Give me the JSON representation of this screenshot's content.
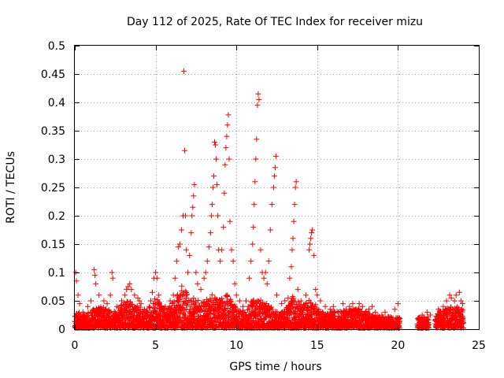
{
  "chart_data": {
    "type": "scatter",
    "title": "Day 112 of 2025, Rate Of TEC Index for receiver mizu",
    "xlabel": "GPS time / hours",
    "ylabel": "ROTI / TECUs",
    "xlim": [
      0,
      25
    ],
    "ylim": [
      0,
      0.5
    ],
    "xticks": [
      0,
      5,
      10,
      15,
      20,
      25
    ],
    "yticks": [
      0,
      0.05,
      0.1,
      0.15,
      0.2,
      0.25,
      0.3,
      0.35,
      0.4,
      0.45,
      0.5
    ],
    "xtick_labels": [
      "0",
      "5",
      "10",
      "15",
      "20",
      "25"
    ],
    "ytick_labels": [
      "0",
      "0.05",
      "0.1",
      "0.15",
      "0.2",
      "0.25",
      "0.3",
      "0.35",
      "0.4",
      "0.45",
      "0.5"
    ],
    "grid": true,
    "marker": "plus",
    "series_color": "#ff0000",
    "series": [
      {
        "name": "ROTI",
        "points": [
          [
            0.05,
            0.1
          ],
          [
            0.1,
            0.085
          ],
          [
            0.2,
            0.06
          ],
          [
            0.3,
            0.045
          ],
          [
            0.5,
            0.03
          ],
          [
            0.8,
            0.04
          ],
          [
            1.0,
            0.05
          ],
          [
            1.2,
            0.105
          ],
          [
            1.25,
            0.095
          ],
          [
            1.3,
            0.08
          ],
          [
            1.5,
            0.06
          ],
          [
            1.8,
            0.05
          ],
          [
            2.0,
            0.045
          ],
          [
            2.2,
            0.06
          ],
          [
            2.3,
            0.1
          ],
          [
            2.35,
            0.09
          ],
          [
            2.6,
            0.04
          ],
          [
            2.9,
            0.05
          ],
          [
            3.1,
            0.06
          ],
          [
            3.2,
            0.07
          ],
          [
            3.3,
            0.075
          ],
          [
            3.4,
            0.08
          ],
          [
            3.5,
            0.07
          ],
          [
            3.7,
            0.06
          ],
          [
            3.9,
            0.055
          ],
          [
            4.0,
            0.05
          ],
          [
            4.1,
            0.045
          ],
          [
            4.3,
            0.035
          ],
          [
            4.4,
            0.03
          ],
          [
            4.6,
            0.04
          ],
          [
            4.7,
            0.05
          ],
          [
            4.8,
            0.065
          ],
          [
            4.9,
            0.09
          ],
          [
            5.0,
            0.1
          ],
          [
            5.1,
            0.09
          ],
          [
            5.2,
            0.06
          ],
          [
            5.4,
            0.035
          ],
          [
            5.6,
            0.04
          ],
          [
            5.9,
            0.05
          ],
          [
            6.1,
            0.06
          ],
          [
            6.2,
            0.09
          ],
          [
            6.3,
            0.12
          ],
          [
            6.4,
            0.145
          ],
          [
            6.5,
            0.15
          ],
          [
            6.6,
            0.175
          ],
          [
            6.7,
            0.2
          ],
          [
            6.75,
            0.455
          ],
          [
            6.8,
            0.315
          ],
          [
            6.85,
            0.2
          ],
          [
            6.9,
            0.14
          ],
          [
            7.0,
            0.1
          ],
          [
            7.1,
            0.13
          ],
          [
            7.2,
            0.17
          ],
          [
            7.25,
            0.2
          ],
          [
            7.3,
            0.215
          ],
          [
            7.35,
            0.235
          ],
          [
            7.4,
            0.255
          ],
          [
            7.5,
            0.1
          ],
          [
            7.6,
            0.08
          ],
          [
            7.8,
            0.07
          ],
          [
            8.0,
            0.09
          ],
          [
            8.1,
            0.1
          ],
          [
            8.2,
            0.12
          ],
          [
            8.3,
            0.145
          ],
          [
            8.4,
            0.17
          ],
          [
            8.45,
            0.2
          ],
          [
            8.5,
            0.22
          ],
          [
            8.55,
            0.25
          ],
          [
            8.6,
            0.27
          ],
          [
            8.65,
            0.33
          ],
          [
            8.7,
            0.325
          ],
          [
            8.75,
            0.3
          ],
          [
            8.8,
            0.255
          ],
          [
            8.85,
            0.2
          ],
          [
            8.9,
            0.14
          ],
          [
            9.0,
            0.12
          ],
          [
            9.1,
            0.14
          ],
          [
            9.2,
            0.18
          ],
          [
            9.25,
            0.24
          ],
          [
            9.3,
            0.29
          ],
          [
            9.35,
            0.32
          ],
          [
            9.4,
            0.34
          ],
          [
            9.45,
            0.36
          ],
          [
            9.5,
            0.378
          ],
          [
            9.55,
            0.3
          ],
          [
            9.6,
            0.19
          ],
          [
            9.7,
            0.14
          ],
          [
            9.8,
            0.12
          ],
          [
            9.9,
            0.08
          ],
          [
            10.0,
            0.06
          ],
          [
            10.2,
            0.05
          ],
          [
            10.4,
            0.04
          ],
          [
            10.6,
            0.05
          ],
          [
            10.8,
            0.09
          ],
          [
            10.9,
            0.12
          ],
          [
            11.0,
            0.15
          ],
          [
            11.05,
            0.18
          ],
          [
            11.1,
            0.22
          ],
          [
            11.15,
            0.26
          ],
          [
            11.2,
            0.3
          ],
          [
            11.25,
            0.335
          ],
          [
            11.3,
            0.395
          ],
          [
            11.35,
            0.415
          ],
          [
            11.4,
            0.405
          ],
          [
            11.5,
            0.14
          ],
          [
            11.6,
            0.1
          ],
          [
            11.7,
            0.09
          ],
          [
            11.8,
            0.1
          ],
          [
            11.9,
            0.08
          ],
          [
            12.0,
            0.12
          ],
          [
            12.1,
            0.175
          ],
          [
            12.2,
            0.22
          ],
          [
            12.3,
            0.25
          ],
          [
            12.35,
            0.27
          ],
          [
            12.4,
            0.285
          ],
          [
            12.45,
            0.305
          ],
          [
            12.5,
            0.06
          ],
          [
            12.8,
            0.045
          ],
          [
            13.0,
            0.05
          ],
          [
            13.2,
            0.055
          ],
          [
            13.3,
            0.09
          ],
          [
            13.4,
            0.11
          ],
          [
            13.45,
            0.14
          ],
          [
            13.5,
            0.16
          ],
          [
            13.55,
            0.19
          ],
          [
            13.6,
            0.22
          ],
          [
            13.65,
            0.25
          ],
          [
            13.7,
            0.26
          ],
          [
            13.8,
            0.07
          ],
          [
            14.0,
            0.05
          ],
          [
            14.3,
            0.06
          ],
          [
            14.5,
            0.14
          ],
          [
            14.55,
            0.15
          ],
          [
            14.6,
            0.16
          ],
          [
            14.65,
            0.17
          ],
          [
            14.7,
            0.175
          ],
          [
            14.8,
            0.13
          ],
          [
            14.9,
            0.07
          ],
          [
            15.0,
            0.06
          ],
          [
            15.2,
            0.05
          ],
          [
            15.5,
            0.04
          ],
          [
            15.8,
            0.035
          ],
          [
            16.0,
            0.04
          ],
          [
            16.3,
            0.03
          ],
          [
            16.6,
            0.045
          ],
          [
            16.8,
            0.035
          ],
          [
            17.0,
            0.04
          ],
          [
            17.2,
            0.045
          ],
          [
            17.4,
            0.035
          ],
          [
            17.6,
            0.045
          ],
          [
            17.8,
            0.04
          ],
          [
            18.0,
            0.03
          ],
          [
            18.2,
            0.035
          ],
          [
            18.4,
            0.04
          ],
          [
            18.6,
            0.03
          ],
          [
            18.8,
            0.02
          ],
          [
            19.0,
            0.025
          ],
          [
            19.2,
            0.03
          ],
          [
            19.4,
            0.015
          ],
          [
            19.6,
            0.02
          ],
          [
            19.8,
            0.035
          ],
          [
            20.0,
            0.045
          ],
          [
            21.3,
            0.02
          ],
          [
            21.5,
            0.025
          ],
          [
            21.6,
            0.02
          ],
          [
            21.8,
            0.03
          ],
          [
            22.0,
            0.025
          ],
          [
            22.3,
            0.015
          ],
          [
            22.5,
            0.035
          ],
          [
            22.8,
            0.04
          ],
          [
            23.0,
            0.05
          ],
          [
            23.2,
            0.06
          ],
          [
            23.3,
            0.055
          ],
          [
            23.5,
            0.05
          ],
          [
            23.6,
            0.06
          ],
          [
            23.8,
            0.065
          ],
          [
            23.9,
            0.05
          ],
          [
            24.0,
            0.045
          ]
        ],
        "dense_band": [
          [
            0,
            0.03
          ],
          [
            0.5,
            0.025
          ],
          [
            1,
            0.03
          ],
          [
            1.5,
            0.04
          ],
          [
            2,
            0.035
          ],
          [
            2.5,
            0.03
          ],
          [
            3,
            0.045
          ],
          [
            3.5,
            0.05
          ],
          [
            4,
            0.04
          ],
          [
            4.5,
            0.03
          ],
          [
            5,
            0.055
          ],
          [
            5.5,
            0.035
          ],
          [
            6,
            0.04
          ],
          [
            6.5,
            0.08
          ],
          [
            7,
            0.06
          ],
          [
            7.5,
            0.05
          ],
          [
            8,
            0.05
          ],
          [
            8.5,
            0.06
          ],
          [
            9,
            0.05
          ],
          [
            9.5,
            0.06
          ],
          [
            10,
            0.035
          ],
          [
            10.5,
            0.03
          ],
          [
            11,
            0.05
          ],
          [
            11.5,
            0.05
          ],
          [
            12,
            0.04
          ],
          [
            12.5,
            0.03
          ],
          [
            13,
            0.03
          ],
          [
            13.5,
            0.06
          ],
          [
            14,
            0.04
          ],
          [
            14.5,
            0.05
          ],
          [
            15,
            0.04
          ],
          [
            15.5,
            0.025
          ],
          [
            16,
            0.03
          ],
          [
            16.5,
            0.03
          ],
          [
            17,
            0.035
          ],
          [
            17.5,
            0.035
          ],
          [
            18,
            0.03
          ],
          [
            18.5,
            0.025
          ],
          [
            19,
            0.02
          ],
          [
            19.5,
            0.02
          ],
          [
            20,
            0.02
          ],
          [
            21.3,
            0.02
          ],
          [
            22,
            0.02
          ],
          [
            22.5,
            0.03
          ],
          [
            23,
            0.035
          ],
          [
            23.5,
            0.04
          ],
          [
            24,
            0.035
          ]
        ],
        "gaps": [
          [
            20.1,
            21.2
          ],
          [
            21.9,
            22.3
          ]
        ]
      }
    ]
  }
}
